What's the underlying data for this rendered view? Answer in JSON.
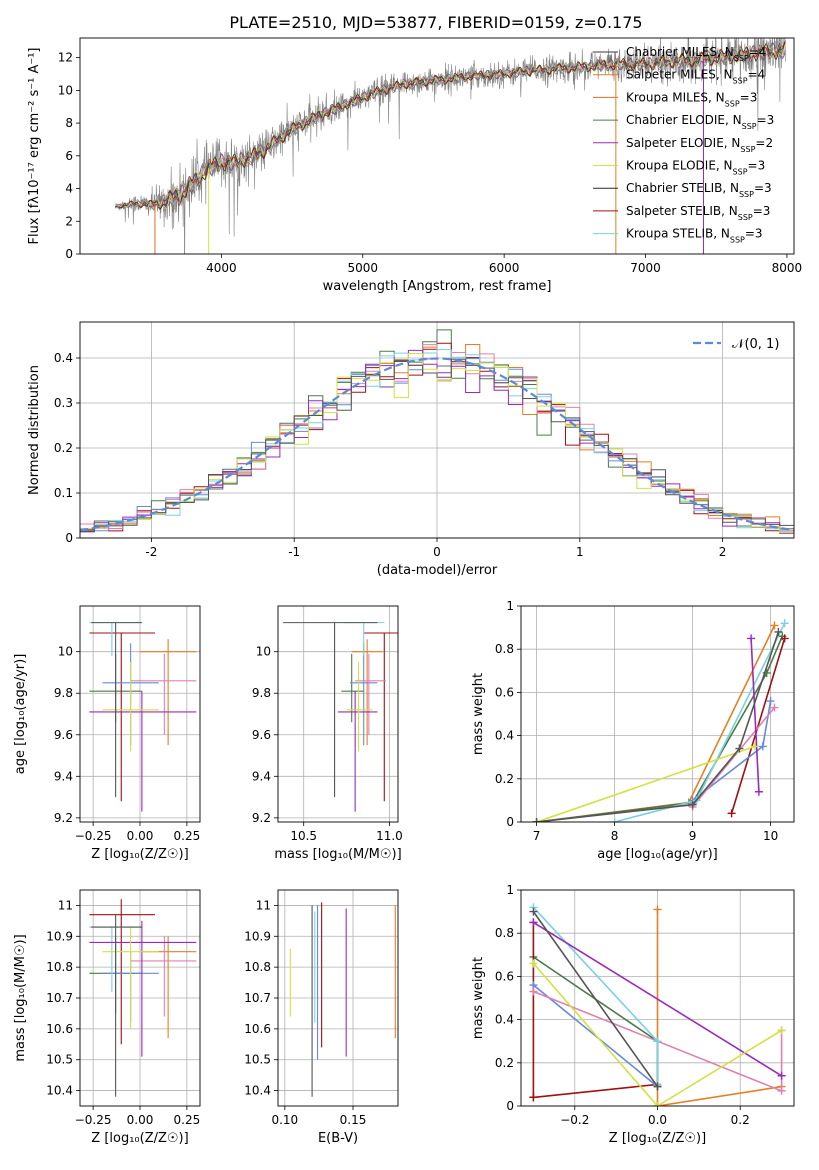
{
  "figure": {
    "title": "PLATE=2510, MJD=53877, FIBERID=0159, z=0.175"
  },
  "colors": {
    "model": [
      "#3a3a3a",
      "#e67e22",
      "#e07020",
      "#4a7a4a",
      "#9a2aba",
      "#d4e040",
      "#2a2a2a",
      "#a01010",
      "#7ad0e0"
    ],
    "ssp": [
      "#e67e22",
      "#4a7a4a",
      "#a01010",
      "#6688dd",
      "#e080b0",
      "#7ad0e0",
      "#9a2aba",
      "#d4e040",
      "#555555"
    ],
    "data": "#808080",
    "gauss": "#5b8bd6",
    "grid": "#b0b0b0"
  },
  "chart_data": [
    {
      "id": "spectrum",
      "type": "line",
      "xlabel": "wavelength [Angstrom, rest frame]",
      "ylabel": "Flux [fλ10⁻¹⁷ erg cm⁻² s⁻¹ A⁻¹]",
      "xlim": [
        3000,
        8050
      ],
      "ylim": [
        0,
        13.2
      ],
      "xticks": [
        4000,
        5000,
        6000,
        7000,
        8000
      ],
      "yticks": [
        0,
        2,
        4,
        6,
        8,
        10,
        12
      ],
      "grid": false,
      "legend_position": "upper right",
      "legend": [
        {
          "name": "Chabrier MILES, N",
          "sub": "SSP",
          "tail": "=4"
        },
        {
          "name": "Salpeter MILES, N",
          "sub": "SSP",
          "tail": "=4"
        },
        {
          "name": "Kroupa MILES, N",
          "sub": "SSP",
          "tail": "=3"
        },
        {
          "name": "Chabrier ELODIE, N",
          "sub": "SSP",
          "tail": "=3"
        },
        {
          "name": "Salpeter ELODIE, N",
          "sub": "SSP",
          "tail": "=2"
        },
        {
          "name": "Kroupa ELODIE, N",
          "sub": "SSP",
          "tail": "=3"
        },
        {
          "name": "Chabrier STELIB, N",
          "sub": "SSP",
          "tail": "=3"
        },
        {
          "name": "Salpeter STELIB, N",
          "sub": "SSP",
          "tail": "=3"
        },
        {
          "name": "Kroupa STELIB, N",
          "sub": "SSP",
          "tail": "=3"
        }
      ],
      "continuum": {
        "x": [
          3250,
          3400,
          3500,
          3600,
          3700,
          3800,
          3900,
          4000,
          4100,
          4200,
          4300,
          4400,
          4500,
          4700,
          4900,
          5100,
          5300,
          5500,
          5800,
          6000,
          6200,
          6500,
          6800,
          7000,
          7200,
          7400,
          7600,
          7800,
          8000
        ],
        "y": [
          2.9,
          3.1,
          3.0,
          3.2,
          3.6,
          4.3,
          5.2,
          5.6,
          5.6,
          5.9,
          6.3,
          7.0,
          7.6,
          8.5,
          9.2,
          9.9,
          10.4,
          10.6,
          10.9,
          11.0,
          11.2,
          11.4,
          11.6,
          11.6,
          11.8,
          11.9,
          12.1,
          12.3,
          12.5
        ]
      },
      "noise_scale": {
        "x": [
          3250,
          3500,
          3700,
          4000,
          4500,
          5000,
          6000,
          6500,
          7000,
          7500,
          8000
        ],
        "y": [
          0.3,
          0.8,
          1.8,
          1.5,
          1.1,
          0.9,
          0.8,
          0.9,
          1.1,
          1.3,
          1.5
        ]
      }
    },
    {
      "id": "residuals",
      "type": "step-histogram",
      "xlabel": "(data-model)/error",
      "ylabel": "Normed distribution",
      "xlim": [
        -2.5,
        2.5
      ],
      "ylim": [
        0,
        0.48
      ],
      "xticks": [
        -2,
        -1,
        0,
        1,
        2
      ],
      "yticks": [
        0,
        0.1,
        0.2,
        0.3,
        0.4
      ],
      "grid": true,
      "bin_width": 0.1,
      "n_models": 9,
      "legend_position": "upper right",
      "gaussian_label": "𝒩(0, 1)"
    },
    {
      "id": "age_vs_Z",
      "type": "errorbar",
      "xlabel": "Z [log₁₀(Z/Z☉)]",
      "ylabel": "age  [log₁₀(age/yr)]",
      "xlim": [
        -0.32,
        0.32
      ],
      "ylim": [
        9.18,
        10.22
      ],
      "xticks": [
        -0.25,
        0.0,
        0.25
      ],
      "xticklabels": [
        "−0.25",
        "0.00",
        "0.25"
      ],
      "yticks": [
        9.2,
        9.4,
        9.6,
        9.8,
        10.0
      ],
      "grid": true,
      "points": [
        {
          "x": 0.15,
          "xl": 0.0,
          "xh": 0.3,
          "y": 10.0,
          "yl": 9.55,
          "yh": 10.06,
          "c": 0
        },
        {
          "x": -0.13,
          "xl": -0.27,
          "xh": 0.01,
          "y": 9.81,
          "yl": 9.66,
          "yh": 9.99,
          "c": 1
        },
        {
          "x": -0.1,
          "xl": -0.27,
          "xh": 0.08,
          "y": 10.09,
          "yl": 9.28,
          "yh": 10.09,
          "c": 2
        },
        {
          "x": -0.05,
          "xl": -0.2,
          "xh": 0.1,
          "y": 9.85,
          "yl": 9.55,
          "yh": 10.04,
          "c": 3
        },
        {
          "x": 0.13,
          "xl": -0.05,
          "xh": 0.3,
          "y": 9.86,
          "yl": 9.6,
          "yh": 9.99,
          "c": 4
        },
        {
          "x": -0.15,
          "xl": -0.27,
          "xh": 0.01,
          "y": 10.14,
          "yl": 9.98,
          "yh": 10.14,
          "c": 5
        },
        {
          "x": 0.01,
          "xl": -0.27,
          "xh": 0.3,
          "y": 9.71,
          "yl": 9.23,
          "yh": 9.81,
          "c": 6
        },
        {
          "x": -0.05,
          "xl": -0.2,
          "xh": 0.1,
          "y": 9.72,
          "yl": 9.52,
          "yh": 9.95,
          "c": 7
        },
        {
          "x": -0.13,
          "xl": -0.26,
          "xh": 0.01,
          "y": 10.14,
          "yl": 9.3,
          "yh": 10.14,
          "c": 8
        }
      ]
    },
    {
      "id": "age_vs_mass",
      "type": "errorbar",
      "xlabel": "mass [log₁₀(M/M☉)]",
      "ylabel": "",
      "xlim": [
        10.35,
        11.05
      ],
      "ylim": [
        9.18,
        10.22
      ],
      "xticks": [
        10.5,
        11.0
      ],
      "xticklabels": [
        "10.5",
        "11.0"
      ],
      "yticks": [
        9.2,
        9.4,
        9.6,
        9.8,
        10.0
      ],
      "grid": true,
      "points": [
        {
          "x": 10.87,
          "xl": 10.78,
          "xh": 10.96,
          "y": 10.0,
          "yl": 9.55,
          "yh": 10.06,
          "c": 0
        },
        {
          "x": 10.78,
          "xl": 10.72,
          "xh": 10.85,
          "y": 9.81,
          "yl": 9.66,
          "yh": 9.99,
          "c": 1
        },
        {
          "x": 10.97,
          "xl": 10.85,
          "xh": 11.09,
          "y": 10.09,
          "yl": 9.28,
          "yh": 10.09,
          "c": 2
        },
        {
          "x": 10.85,
          "xl": 10.77,
          "xh": 10.93,
          "y": 9.85,
          "yl": 9.55,
          "yh": 10.04,
          "c": 3
        },
        {
          "x": 10.88,
          "xl": 10.8,
          "xh": 10.98,
          "y": 9.86,
          "yl": 9.6,
          "yh": 9.99,
          "c": 4
        },
        {
          "x": 10.85,
          "xl": 10.73,
          "xh": 10.97,
          "y": 10.14,
          "yl": 9.98,
          "yh": 10.14,
          "c": 5
        },
        {
          "x": 10.8,
          "xl": 10.7,
          "xh": 10.93,
          "y": 9.71,
          "yl": 9.23,
          "yh": 9.81,
          "c": 6
        },
        {
          "x": 10.82,
          "xl": 10.75,
          "xh": 10.9,
          "y": 9.72,
          "yl": 9.52,
          "yh": 9.95,
          "c": 7
        },
        {
          "x": 10.68,
          "xl": 10.38,
          "xh": 10.93,
          "y": 10.14,
          "yl": 9.3,
          "yh": 10.14,
          "c": 8
        }
      ]
    },
    {
      "id": "weight_vs_age",
      "type": "line",
      "xlabel": "age  [log₁₀(age/yr)]",
      "ylabel": "mass weight",
      "xlim": [
        6.8,
        10.3
      ],
      "ylim": [
        0,
        1
      ],
      "xticks": [
        7,
        8,
        9,
        10
      ],
      "yticks": [
        0,
        0.2,
        0.4,
        0.6,
        0.8,
        1.0
      ],
      "grid": true,
      "series": [
        {
          "c": 0,
          "x": [
            7.0,
            8.95,
            10.05
          ],
          "y": [
            0.0,
            0.09,
            0.91
          ]
        },
        {
          "c": 1,
          "x": [
            7.0,
            9.0,
            9.95,
            10.15
          ],
          "y": [
            0.0,
            0.09,
            0.69,
            0.86
          ]
        },
        {
          "c": 2,
          "x": [
            9.5,
            10.18
          ],
          "y": [
            0.04,
            0.85
          ]
        },
        {
          "c": 3,
          "x": [
            9.0,
            9.9,
            10.0
          ],
          "y": [
            0.1,
            0.35,
            0.56
          ]
        },
        {
          "c": 4,
          "x": [
            9.0,
            10.05
          ],
          "y": [
            0.07,
            0.53
          ]
        },
        {
          "c": 5,
          "x": [
            8.0,
            9.05,
            10.18
          ],
          "y": [
            0.0,
            0.1,
            0.92
          ]
        },
        {
          "c": 6,
          "x": [
            9.75,
            9.85
          ],
          "y": [
            0.85,
            0.14
          ]
        },
        {
          "c": 7,
          "x": [
            7.0,
            9.8
          ],
          "y": [
            0.0,
            0.35
          ]
        },
        {
          "c": 8,
          "x": [
            7.0,
            9.0,
            9.6,
            10.1
          ],
          "y": [
            0.0,
            0.08,
            0.34,
            0.88
          ]
        }
      ]
    },
    {
      "id": "mass_vs_Z",
      "type": "errorbar",
      "xlabel": "Z [log₁₀(Z/Z☉)]",
      "ylabel": "mass [log₁₀(M/M☉)]",
      "xlim": [
        -0.32,
        0.32
      ],
      "ylim": [
        10.35,
        11.05
      ],
      "xticks": [
        -0.25,
        0.0,
        0.25
      ],
      "xticklabels": [
        "−0.25",
        "0.00",
        "0.25"
      ],
      "yticks": [
        10.4,
        10.5,
        10.6,
        10.7,
        10.8,
        10.9,
        11.0
      ],
      "grid": true,
      "points": [
        {
          "x": 0.15,
          "xl": 0.0,
          "xh": 0.3,
          "y": 10.85,
          "yl": 10.57,
          "yh": 10.9,
          "c": 0
        },
        {
          "x": -0.13,
          "xl": -0.27,
          "xh": 0.01,
          "y": 10.78,
          "yl": 10.65,
          "yh": 10.9,
          "c": 1
        },
        {
          "x": -0.1,
          "xl": -0.27,
          "xh": 0.08,
          "y": 10.97,
          "yl": 10.55,
          "yh": 11.02,
          "c": 2
        },
        {
          "x": -0.05,
          "xl": -0.2,
          "xh": 0.1,
          "y": 10.78,
          "yl": 10.62,
          "yh": 10.85,
          "c": 3
        },
        {
          "x": 0.13,
          "xl": -0.05,
          "xh": 0.3,
          "y": 10.82,
          "yl": 10.64,
          "yh": 10.9,
          "c": 4
        },
        {
          "x": -0.15,
          "xl": -0.27,
          "xh": 0.01,
          "y": 10.93,
          "yl": 10.72,
          "yh": 10.93,
          "c": 5
        },
        {
          "x": 0.01,
          "xl": -0.27,
          "xh": 0.3,
          "y": 10.88,
          "yl": 10.51,
          "yh": 10.95,
          "c": 6
        },
        {
          "x": -0.05,
          "xl": -0.2,
          "xh": 0.1,
          "y": 10.85,
          "yl": 10.6,
          "yh": 10.93,
          "c": 7
        },
        {
          "x": -0.13,
          "xl": -0.26,
          "xh": 0.01,
          "y": 10.93,
          "yl": 10.38,
          "yh": 10.97,
          "c": 8
        }
      ]
    },
    {
      "id": "mass_vs_ebv",
      "type": "errorbar",
      "xlabel": "E(B-V)",
      "ylabel": "",
      "xlim": [
        0.095,
        0.183
      ],
      "ylim": [
        10.35,
        11.05
      ],
      "xticks": [
        0.1,
        0.15
      ],
      "xticklabels": [
        "0.10",
        "0.15"
      ],
      "yticks": [
        10.4,
        10.5,
        10.6,
        10.7,
        10.8,
        10.9,
        11.0
      ],
      "grid": true,
      "points": [
        {
          "x": 0.181,
          "y": 10.78,
          "yl": 10.57,
          "yh": 11.0,
          "c": 0
        },
        {
          "x": 0.104,
          "y": 10.75,
          "yl": 10.64,
          "yh": 10.86,
          "c": 7
        },
        {
          "x": 0.12,
          "y": 10.7,
          "yl": 10.38,
          "yh": 11.0,
          "c": 8
        },
        {
          "x": 0.122,
          "y": 10.8,
          "yl": 10.62,
          "yh": 10.98,
          "c": 5
        },
        {
          "x": 0.124,
          "y": 10.75,
          "yl": 10.5,
          "yh": 11.0,
          "c": 3
        },
        {
          "x": 0.127,
          "y": 10.8,
          "yl": 10.54,
          "yh": 11.01,
          "c": 2
        },
        {
          "x": 0.145,
          "y": 10.75,
          "yl": 10.51,
          "yh": 10.99,
          "c": 6
        }
      ]
    },
    {
      "id": "weight_vs_Z",
      "type": "line",
      "xlabel": "Z [log₁₀(Z/Z☉)]",
      "ylabel": "mass weight",
      "xlim": [
        -0.33,
        0.33
      ],
      "ylim": [
        0,
        1
      ],
      "xticks": [
        -0.2,
        0.0,
        0.2
      ],
      "xticklabels": [
        "−0.2",
        "0.0",
        "0.2"
      ],
      "yticks": [
        0,
        0.2,
        0.4,
        0.6,
        0.8,
        1.0
      ],
      "grid": true,
      "series": [
        {
          "c": 0,
          "x": [
            0.0,
            0.0,
            0.3,
            0.0
          ],
          "y": [
            0.91,
            0.0,
            0.09,
            0.0
          ]
        },
        {
          "c": 1,
          "x": [
            -0.3,
            0.0,
            0.0
          ],
          "y": [
            0.69,
            0.3,
            0.09
          ]
        },
        {
          "c": 2,
          "x": [
            -0.3,
            -0.3,
            0.0,
            -0.3
          ],
          "y": [
            0.85,
            0.04,
            0.1,
            0.04
          ]
        },
        {
          "c": 3,
          "x": [
            -0.3,
            0.0
          ],
          "y": [
            0.56,
            0.09
          ]
        },
        {
          "c": 4,
          "x": [
            -0.3,
            0.3,
            0.3
          ],
          "y": [
            0.53,
            0.07,
            0.35
          ]
        },
        {
          "c": 5,
          "x": [
            -0.3,
            0.0,
            0.0
          ],
          "y": [
            0.92,
            0.3,
            0.1
          ]
        },
        {
          "c": 6,
          "x": [
            -0.3,
            0.3
          ],
          "y": [
            0.85,
            0.14
          ]
        },
        {
          "c": 7,
          "x": [
            -0.3,
            0.0,
            0.3
          ],
          "y": [
            0.66,
            0.0,
            0.35
          ]
        },
        {
          "c": 8,
          "x": [
            -0.3,
            0.0
          ],
          "y": [
            0.9,
            0.09
          ]
        }
      ]
    }
  ]
}
